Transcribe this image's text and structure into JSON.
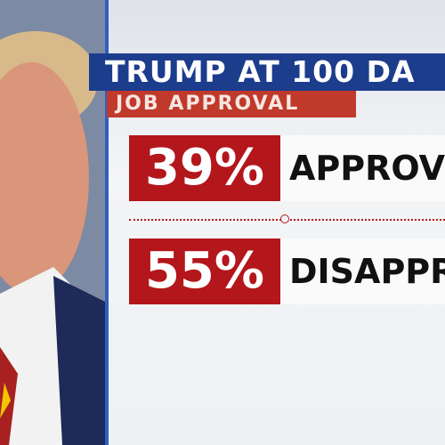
{
  "header": {
    "title": "TRUMP AT 100 DA",
    "subtitle": "JOB APPROVAL"
  },
  "results": [
    {
      "percent": "39%",
      "label": "APPROV"
    },
    {
      "percent": "55%",
      "label": "DISAPPR"
    }
  ]
}
